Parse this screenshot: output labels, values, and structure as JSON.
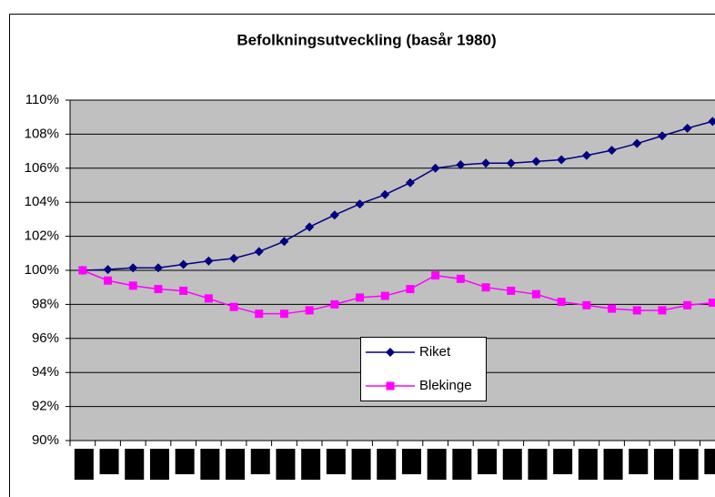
{
  "chart_data": {
    "type": "line",
    "title": "Befolkningsutveckling (basår 1980)",
    "categories": [
      null,
      null,
      null,
      null,
      null,
      null,
      null,
      null,
      null,
      null,
      null,
      null,
      null,
      null,
      null,
      null,
      null,
      null,
      null,
      null,
      null,
      null,
      null,
      null,
      null,
      null
    ],
    "series": [
      {
        "name": "Riket",
        "color": "#000080",
        "marker": "diamond",
        "values": [
          100,
          100.05,
          100.15,
          100.15,
          100.35,
          100.55,
          100.7,
          101.1,
          101.7,
          102.55,
          103.25,
          103.9,
          104.45,
          105.15,
          106.0,
          106.2,
          106.3,
          106.3,
          106.4,
          106.5,
          106.75,
          107.05,
          107.45,
          107.9,
          108.35,
          108.75
        ]
      },
      {
        "name": "Blekinge",
        "color": "#ff00ff",
        "marker": "square",
        "values": [
          100,
          99.4,
          99.1,
          98.9,
          98.8,
          98.35,
          97.85,
          97.45,
          97.45,
          97.65,
          98.0,
          98.4,
          98.5,
          98.9,
          99.7,
          99.5,
          99.0,
          98.8,
          98.6,
          98.15,
          97.95,
          97.75,
          97.65,
          97.65,
          97.95,
          98.1
        ]
      }
    ],
    "ylim": [
      90,
      110
    ],
    "yticks": [
      {
        "value": 90,
        "label": "90%"
      },
      {
        "value": 92,
        "label": "92%"
      },
      {
        "value": 94,
        "label": "94%"
      },
      {
        "value": 96,
        "label": "96%"
      },
      {
        "value": 98,
        "label": "98%"
      },
      {
        "value": 100,
        "label": "100%"
      },
      {
        "value": 102,
        "label": "102%"
      },
      {
        "value": 104,
        "label": "104%"
      },
      {
        "value": 106,
        "label": "106%"
      },
      {
        "value": 108,
        "label": "108%"
      },
      {
        "value": 110,
        "label": "110%"
      }
    ],
    "grid": true,
    "plot_background": "#c0c0c0"
  }
}
